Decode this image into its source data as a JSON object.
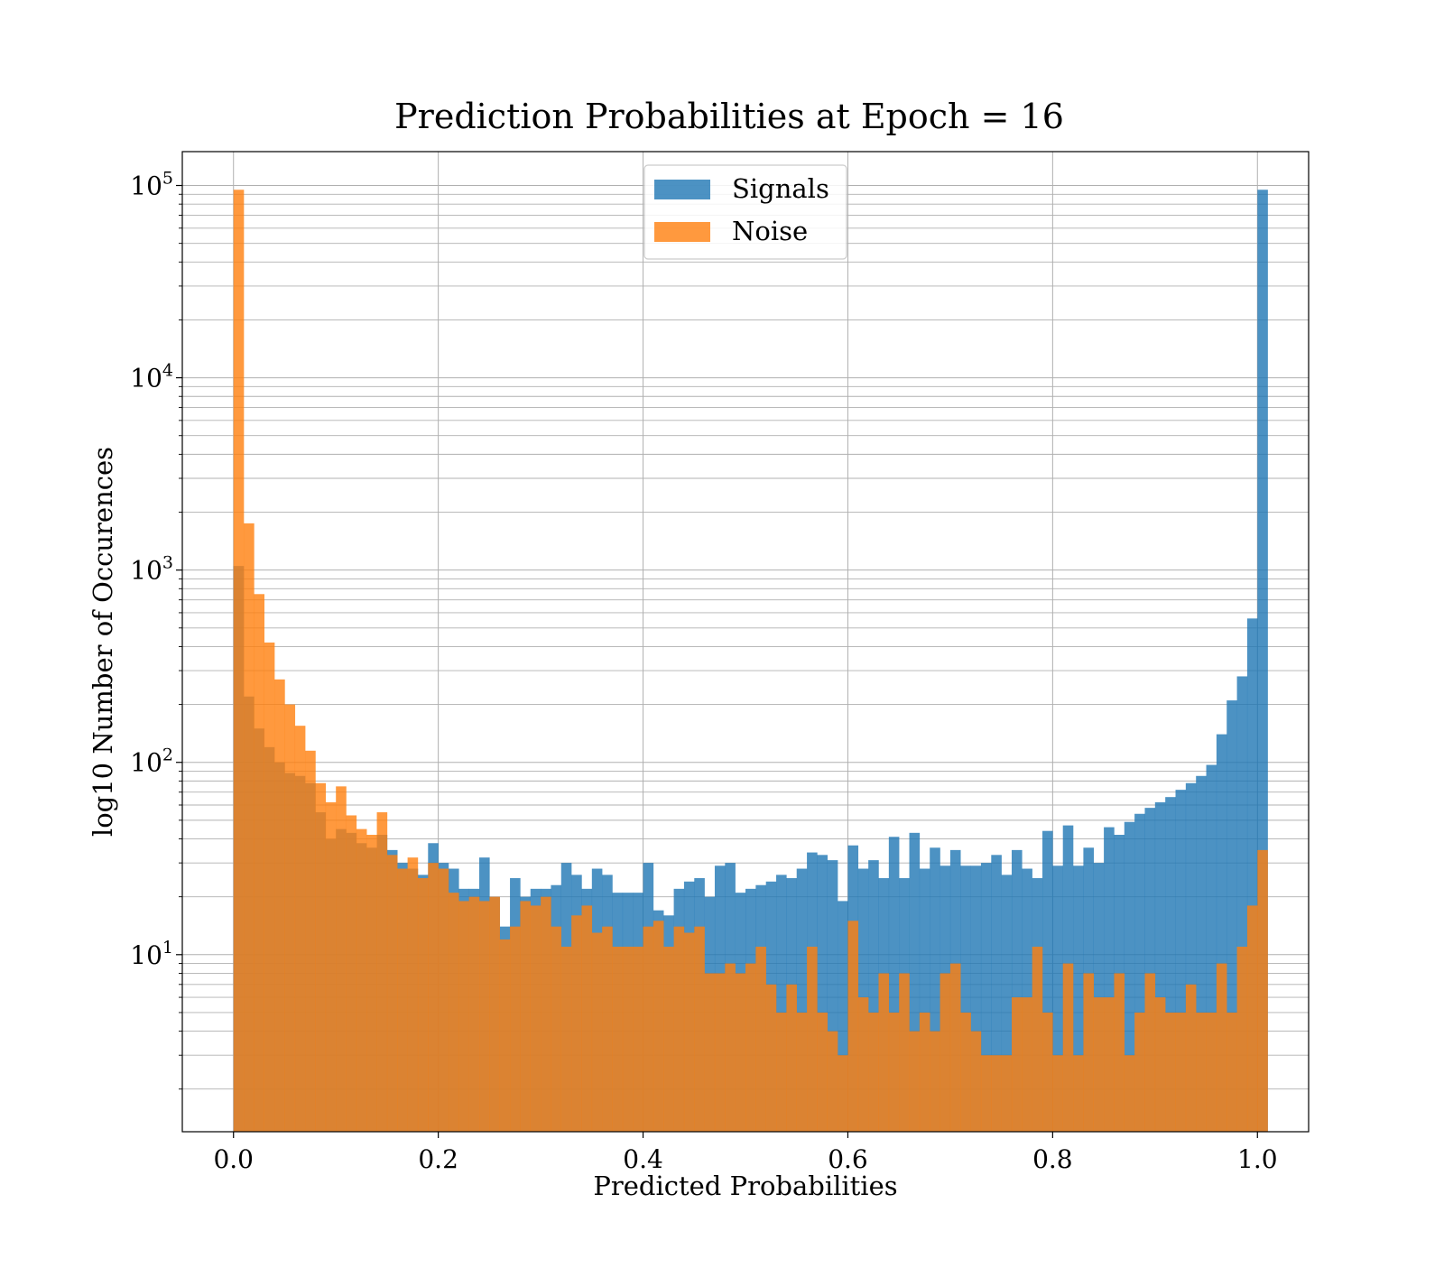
{
  "chart_data": {
    "type": "bar",
    "histtype": "overlaid histogram",
    "title": "Prediction Probabilities at Epoch = 16",
    "xlabel": "Predicted Probabilities",
    "ylabel": "log10 Number of Occurences",
    "xlim": [
      -0.05,
      1.05
    ],
    "ylim": [
      1.2,
      150000
    ],
    "yscale": "log",
    "grid": true,
    "grid_minor_y": true,
    "legend_position": "upper center",
    "xticks": [
      "0.0",
      "0.2",
      "0.4",
      "0.6",
      "0.8",
      "1.0"
    ],
    "xtick_values": [
      0.0,
      0.2,
      0.4,
      0.6,
      0.8,
      1.0
    ],
    "yticks": [
      {
        "base": "10",
        "exp": "1",
        "value": 10
      },
      {
        "base": "10",
        "exp": "2",
        "value": 100
      },
      {
        "base": "10",
        "exp": "3",
        "value": 1000
      },
      {
        "base": "10",
        "exp": "4",
        "value": 10000
      },
      {
        "base": "10",
        "exp": "5",
        "value": 100000
      }
    ],
    "bin_edges_start": 0.0,
    "bin_width": 0.01,
    "series": [
      {
        "name": "Signals",
        "color": "#1f77b4",
        "alpha": 0.8,
        "values": [
          1050,
          220,
          150,
          120,
          100,
          88,
          85,
          78,
          55,
          40,
          45,
          43,
          38,
          36,
          42,
          35,
          30,
          28,
          26,
          38,
          30,
          28,
          22,
          22,
          32,
          20,
          14,
          25,
          20,
          22,
          22,
          23,
          30,
          26,
          22,
          28,
          26,
          21,
          21,
          21,
          30,
          17,
          16,
          22,
          24,
          25,
          20,
          29,
          30,
          21,
          22,
          23,
          24,
          26,
          25,
          28,
          34,
          33,
          31,
          19,
          37,
          28,
          31,
          25,
          41,
          25,
          43,
          28,
          36,
          29,
          35,
          29,
          29,
          30,
          33,
          26,
          35,
          28,
          25,
          44,
          29,
          47,
          29,
          36,
          30,
          46,
          42,
          49,
          54,
          58,
          62,
          66,
          72,
          78,
          85,
          97,
          140,
          210,
          280,
          560,
          95000
        ]
      },
      {
        "name": "Noise",
        "color": "#ff7f0e",
        "alpha": 0.8,
        "values": [
          95000,
          1750,
          750,
          420,
          270,
          200,
          155,
          115,
          78,
          62,
          75,
          53,
          45,
          42,
          55,
          33,
          28,
          32,
          25,
          30,
          28,
          21,
          19,
          20,
          19,
          20,
          12,
          14,
          19,
          18,
          20,
          14,
          11,
          16,
          18,
          13,
          14,
          11,
          11,
          11,
          14,
          15,
          11,
          14,
          13,
          14,
          8,
          8,
          9,
          8,
          9,
          11,
          7,
          5,
          7,
          5,
          11,
          5,
          4,
          3,
          15,
          6,
          5,
          8,
          5,
          8,
          4,
          5,
          4,
          8,
          9,
          5,
          4,
          3,
          3,
          3,
          6,
          6,
          11,
          5,
          3,
          9,
          3,
          8,
          6,
          6,
          8,
          3,
          5,
          8,
          6,
          5,
          5,
          7,
          5,
          5,
          9,
          5,
          11,
          18,
          35
        ]
      }
    ]
  }
}
